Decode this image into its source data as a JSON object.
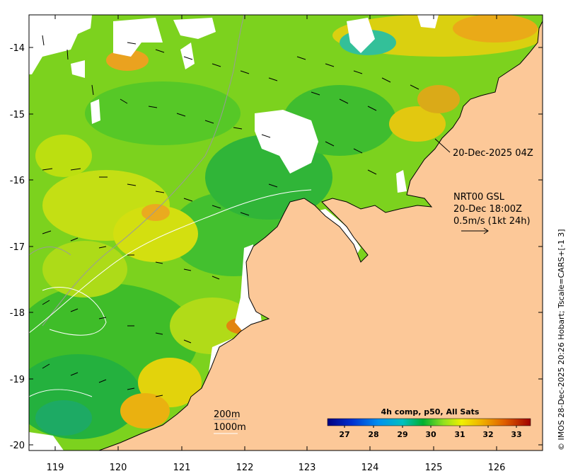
{
  "map": {
    "lon_range": [
      118.6,
      126.75
    ],
    "lat_range": [
      -20.1,
      -13.5
    ],
    "lon_ticks": [
      "119",
      "120",
      "121",
      "122",
      "123",
      "124",
      "125",
      "126"
    ],
    "lat_ticks": [
      "-14",
      "-15",
      "-16",
      "-17",
      "-18",
      "-19",
      "-20"
    ],
    "colors": {
      "land": "#fcc898",
      "nodata": "#ffffff",
      "coastline": "#000000",
      "isobath": "#9a9a9a"
    }
  },
  "annotations": {
    "timestamp": "20-Dec-2025 04Z",
    "current_line1": "NRT00 GSL",
    "current_line2": "20-Dec 18:00Z",
    "current_line3": "0.5m/s (1kt 24h)"
  },
  "isobath_legend": {
    "line1": "200m",
    "line2": "1000m"
  },
  "colorbar": {
    "title": "4h comp, p50, All Sats",
    "ticks": [
      "27",
      "28",
      "29",
      "30",
      "31",
      "32",
      "33"
    ],
    "range": [
      26.5,
      33.5
    ]
  },
  "credit": "© IMOS 28-Dec-2025 20:26 Hobart; Tscale=CARS+[-1 3]"
}
